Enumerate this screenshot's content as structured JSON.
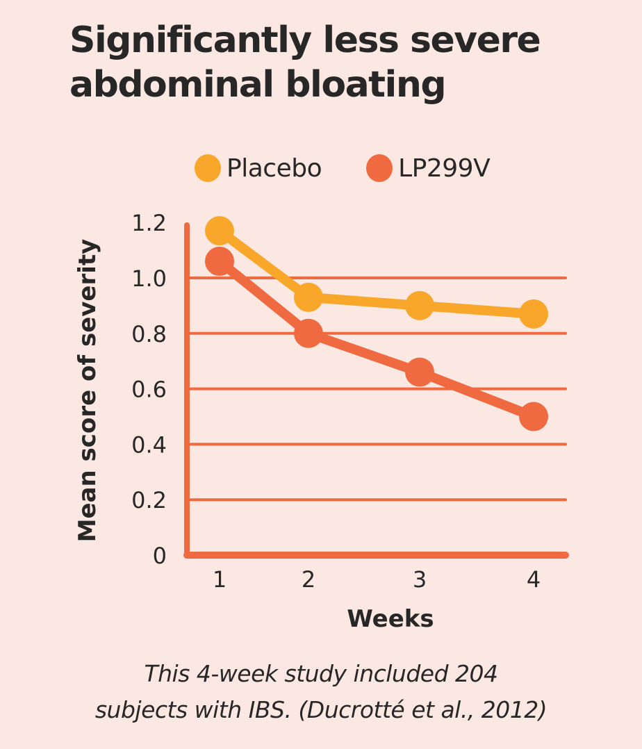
{
  "colors": {
    "background": "#FCE8E2",
    "axis": "#EF6A40",
    "placebo": "#F9A72B",
    "lp299v": "#EF6A40",
    "text": "#272727"
  },
  "chart_data": {
    "type": "line",
    "title": "Significantly less severe abdominal bloating",
    "xlabel": "Weeks",
    "ylabel": "Mean score of severity",
    "x": [
      1,
      2,
      3,
      4
    ],
    "x_tick_labels": [
      "1",
      "2",
      "3",
      "4"
    ],
    "y_ticks": [
      0,
      0.2,
      0.4,
      0.6,
      0.8,
      1.0,
      1.2
    ],
    "y_tick_labels": [
      "0",
      "0.2",
      "0.4",
      "0.6",
      "0.8",
      "1.0",
      "1.2"
    ],
    "ylim": [
      0,
      1.2
    ],
    "grid": "horizontal",
    "legend_position": "top",
    "series": [
      {
        "name": "Placebo",
        "color": "#F9A72B",
        "values": [
          1.17,
          0.93,
          0.9,
          0.87
        ]
      },
      {
        "name": "LP299V",
        "color": "#EF6A40",
        "values": [
          1.06,
          0.8,
          0.66,
          0.5
        ]
      }
    ]
  },
  "caption": {
    "line1": "This 4-week study included 204",
    "line2": "subjects with IBS. (Ducrotté et al., 2012)"
  }
}
